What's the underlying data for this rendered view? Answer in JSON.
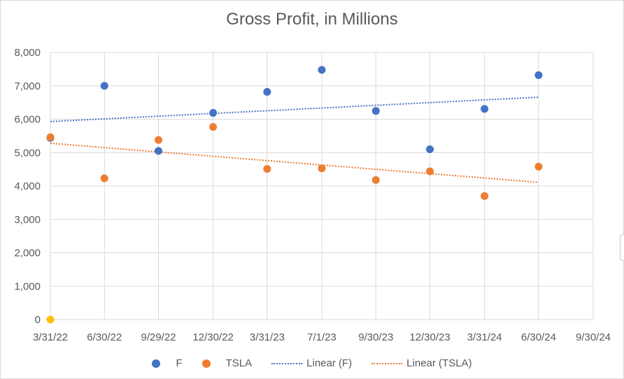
{
  "chart_data": {
    "type": "scatter",
    "title": "Gross Profit, in Millions",
    "x_tick_labels": [
      "3/31/22",
      "6/30/22",
      "9/29/22",
      "12/30/22",
      "3/31/23",
      "7/1/23",
      "9/30/23",
      "12/30/23",
      "3/31/24",
      "6/30/24",
      "9/30/24"
    ],
    "x_tick_dates": [
      "2022-03-31",
      "2022-06-30",
      "2022-09-29",
      "2022-12-30",
      "2023-03-31",
      "2023-07-01",
      "2023-09-30",
      "2023-12-30",
      "2024-03-31",
      "2024-06-30",
      "2024-09-30"
    ],
    "xlim": [
      "2022-03-31",
      "2024-09-30"
    ],
    "ylim": [
      0,
      8000
    ],
    "y_ticks": [
      0,
      1000,
      2000,
      3000,
      4000,
      5000,
      6000,
      7000,
      8000
    ],
    "y_tick_labels": [
      "0",
      "1,000",
      "2,000",
      "3,000",
      "4,000",
      "5,000",
      "6,000",
      "7,000",
      "8,000"
    ],
    "grid": true,
    "legend_position": "bottom",
    "series": [
      {
        "name": "F",
        "color": "#4472c4",
        "x": [
          "2022-03-31",
          "2022-06-30",
          "2022-09-29",
          "2022-12-30",
          "2023-03-31",
          "2023-07-01",
          "2023-09-30",
          "2023-12-30",
          "2024-03-31",
          "2024-06-30"
        ],
        "y": [
          5440,
          7000,
          5050,
          6190,
          6820,
          7480,
          6250,
          5100,
          6310,
          7320
        ]
      },
      {
        "name": "TSLA",
        "color": "#ed7d31",
        "x": [
          "2022-03-31",
          "2022-06-30",
          "2022-09-29",
          "2022-12-30",
          "2023-03-31",
          "2023-07-01",
          "2023-09-30",
          "2023-12-30",
          "2024-03-31",
          "2024-06-30"
        ],
        "y": [
          5460,
          4230,
          5380,
          5770,
          4510,
          4530,
          4180,
          4440,
          3700,
          4580
        ]
      },
      {
        "name": "",
        "color": "#ffc000",
        "x": [
          "2022-03-31"
        ],
        "y": [
          0
        ]
      }
    ],
    "trendlines": [
      {
        "name": "Linear (F)",
        "color": "#4472c4",
        "x": [
          "2022-03-31",
          "2024-06-30"
        ],
        "y": [
          5930,
          6660
        ]
      },
      {
        "name": "Linear (TSLA)",
        "color": "#ed7d31",
        "x": [
          "2022-03-31",
          "2024-06-30"
        ],
        "y": [
          5280,
          4110
        ]
      }
    ],
    "legend": [
      {
        "label": "F",
        "kind": "marker",
        "color": "#4472c4"
      },
      {
        "label": "TSLA",
        "kind": "marker",
        "color": "#ed7d31"
      },
      {
        "label": "Linear (F)",
        "kind": "line",
        "color": "#4472c4"
      },
      {
        "label": "Linear (TSLA)",
        "kind": "line",
        "color": "#ed7d31"
      }
    ]
  }
}
